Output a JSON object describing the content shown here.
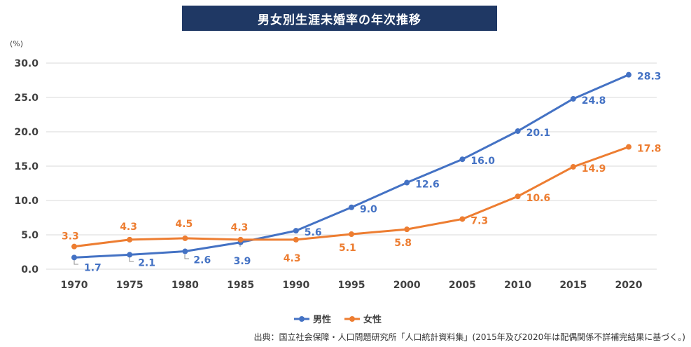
{
  "colors": {
    "male": "#4472c4",
    "female": "#ed7d31",
    "title_bg": "#1f3864",
    "grid": "#d9d9d9"
  },
  "source": "出典：国立社会保障・人口問題研究所「人口統計資料集」(2015年及び2020年は配偶関係不詳補完結果に基づく。)",
  "chart_data": {
    "type": "line",
    "title": "男女別生涯未婚率の年次推移",
    "ylabel": "(%)",
    "xlabel": "",
    "ylim": [
      0,
      30
    ],
    "yticks": [
      "0.0",
      "5.0",
      "10.0",
      "15.0",
      "20.0",
      "25.0",
      "30.0"
    ],
    "categories": [
      "1970",
      "1975",
      "1980",
      "1985",
      "1990",
      "1995",
      "2000",
      "2005",
      "2010",
      "2015",
      "2020"
    ],
    "legend_position": "bottom",
    "grid": true,
    "series": [
      {
        "name": "男性",
        "color": "#4472c4",
        "values": [
          1.7,
          2.1,
          2.6,
          3.9,
          5.6,
          9.0,
          12.6,
          16.0,
          20.1,
          24.8,
          28.3
        ],
        "labels": [
          "1.7",
          "2.1",
          "2.6",
          "3.9",
          "5.6",
          "9.0",
          "12.6",
          "16.0",
          "20.1",
          "24.8",
          "28.3"
        ]
      },
      {
        "name": "女性",
        "color": "#ed7d31",
        "values": [
          3.3,
          4.3,
          4.5,
          4.3,
          4.3,
          5.1,
          5.8,
          7.3,
          10.6,
          14.9,
          17.8
        ],
        "labels": [
          "3.3",
          "4.3",
          "4.5",
          "4.3",
          "4.3",
          "5.1",
          "5.8",
          "7.3",
          "10.6",
          "14.9",
          "17.8"
        ]
      }
    ]
  }
}
